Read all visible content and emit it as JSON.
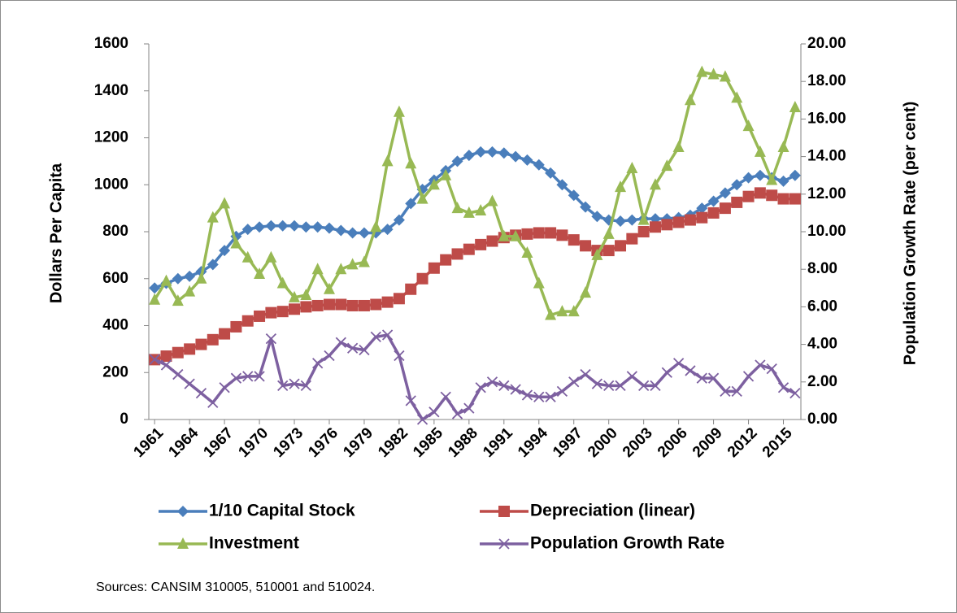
{
  "chart_data": {
    "type": "line",
    "x": [
      1961,
      1962,
      1963,
      1964,
      1965,
      1966,
      1967,
      1968,
      1969,
      1970,
      1971,
      1972,
      1973,
      1974,
      1975,
      1976,
      1977,
      1978,
      1979,
      1980,
      1981,
      1982,
      1983,
      1984,
      1985,
      1986,
      1987,
      1988,
      1989,
      1990,
      1991,
      1992,
      1993,
      1994,
      1995,
      1996,
      1997,
      1998,
      1999,
      2000,
      2001,
      2002,
      2003,
      2004,
      2005,
      2006,
      2007,
      2008,
      2009,
      2010,
      2011,
      2012,
      2013,
      2014,
      2015,
      2016
    ],
    "xlim": [
      1960.5,
      2016.5
    ],
    "xticks": [
      1961,
      1964,
      1967,
      1970,
      1973,
      1976,
      1979,
      1982,
      1985,
      1988,
      1991,
      1994,
      1997,
      2000,
      2003,
      2006,
      2009,
      2012,
      2015
    ],
    "ylabel": "Dollars Per Capita",
    "ylim": [
      0,
      1600
    ],
    "yticks": [
      0,
      200,
      400,
      600,
      800,
      1000,
      1200,
      1400,
      1600
    ],
    "y2label": "Population Growth  Rate (per cent)",
    "y2lim": [
      0,
      20
    ],
    "y2ticks": [
      {
        "value": 0,
        "label": "0.00"
      },
      {
        "value": 2,
        "label": "2.00"
      },
      {
        "value": 4,
        "label": "4.00"
      },
      {
        "value": 6,
        "label": "6.00"
      },
      {
        "value": 8,
        "label": "8.00"
      },
      {
        "value": 10,
        "label": "10.00"
      },
      {
        "value": 12,
        "label": "12.00"
      },
      {
        "value": 14,
        "label": "14.00"
      },
      {
        "value": 16,
        "label": "16.00"
      },
      {
        "value": 18,
        "label": "18.00"
      },
      {
        "value": 20,
        "label": "20.00"
      }
    ],
    "grid": false,
    "series": [
      {
        "name": "1/10 Capital Stock",
        "color": "#4a7ebb",
        "marker": "diamond",
        "values": [
          560,
          580,
          600,
          610,
          630,
          660,
          720,
          780,
          810,
          820,
          825,
          825,
          825,
          820,
          820,
          815,
          805,
          795,
          795,
          795,
          810,
          850,
          920,
          980,
          1020,
          1060,
          1100,
          1125,
          1140,
          1140,
          1135,
          1120,
          1105,
          1085,
          1050,
          1000,
          955,
          905,
          865,
          850,
          845,
          850,
          855,
          855,
          855,
          860,
          870,
          900,
          930,
          965,
          1000,
          1030,
          1040,
          1030,
          1015,
          1040
        ]
      },
      {
        "name": "Depreciation (linear)",
        "color": "#be4b48",
        "marker": "square",
        "values": [
          255,
          270,
          285,
          300,
          320,
          340,
          365,
          395,
          420,
          440,
          455,
          460,
          470,
          480,
          485,
          490,
          490,
          485,
          485,
          490,
          500,
          515,
          555,
          600,
          645,
          680,
          705,
          725,
          745,
          760,
          775,
          785,
          790,
          795,
          795,
          785,
          765,
          740,
          720,
          720,
          740,
          770,
          800,
          820,
          830,
          840,
          850,
          860,
          880,
          900,
          925,
          950,
          965,
          955,
          940,
          940
        ]
      },
      {
        "name": "Investment",
        "color": "#98b954",
        "marker": "triangle",
        "values": [
          510,
          590,
          505,
          545,
          600,
          860,
          920,
          750,
          690,
          620,
          690,
          580,
          520,
          530,
          640,
          555,
          640,
          660,
          670,
          820,
          1100,
          1310,
          1090,
          940,
          1000,
          1040,
          900,
          880,
          890,
          930,
          780,
          780,
          710,
          580,
          445,
          460,
          460,
          540,
          700,
          790,
          990,
          1070,
          850,
          1000,
          1080,
          1160,
          1360,
          1480,
          1470,
          1460,
          1370,
          1250,
          1140,
          1020,
          1160,
          1330
        ]
      },
      {
        "name": "Population Growth Rate",
        "color": "#7d60a0",
        "marker": "x",
        "axis": "y2",
        "values": [
          3.2,
          2.9,
          2.4,
          1.9,
          1.4,
          0.9,
          1.7,
          2.2,
          2.3,
          2.3,
          4.3,
          1.8,
          1.9,
          1.8,
          3.0,
          3.4,
          4.1,
          3.8,
          3.7,
          4.4,
          4.5,
          3.4,
          1.0,
          0.0,
          0.4,
          1.2,
          0.3,
          0.6,
          1.7,
          2.0,
          1.8,
          1.6,
          1.3,
          1.2,
          1.2,
          1.5,
          2.0,
          2.4,
          1.9,
          1.8,
          1.8,
          2.3,
          1.8,
          1.8,
          2.5,
          3.0,
          2.6,
          2.2,
          2.2,
          1.5,
          1.5,
          2.3,
          2.9,
          2.7,
          1.7,
          1.4
        ]
      }
    ],
    "source": "Sources: CANSIM 310005, 510001 and 510024."
  }
}
